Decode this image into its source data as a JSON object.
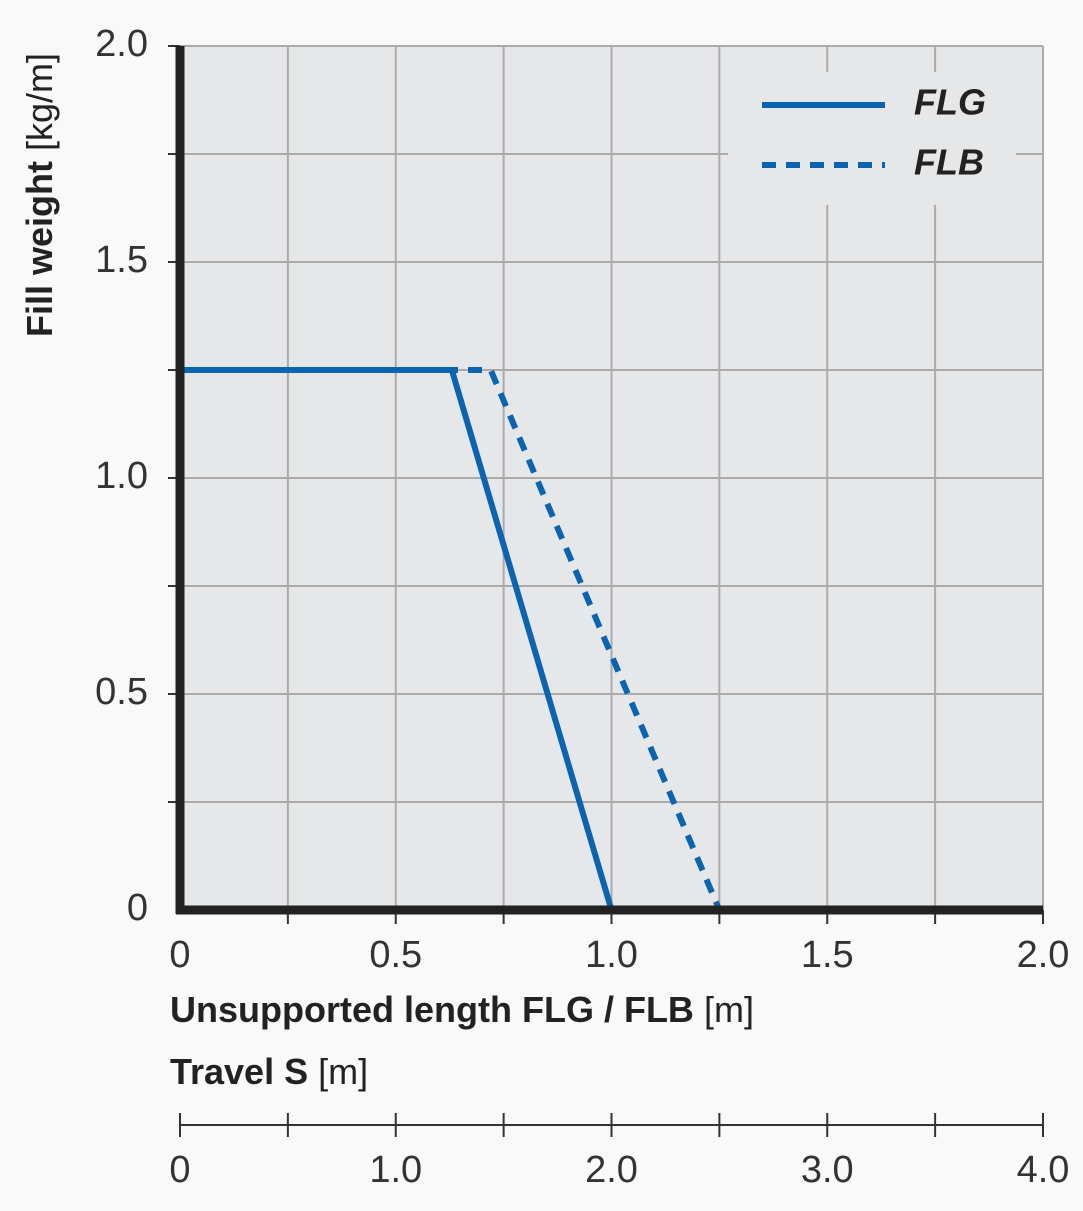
{
  "chart_data": {
    "type": "line",
    "ylabel": "Fill weight",
    "ylabel_unit": "[kg/m]",
    "xlabel": "Unsupported length FLG / FLB",
    "xlabel_unit": "[m]",
    "x2label": "Travel S",
    "x2label_unit": "[m]",
    "xlim": [
      0,
      2
    ],
    "xticks": [
      0,
      0.5,
      {
        "value": 1,
        "label": "1.0"
      },
      1.5,
      {
        "value": 2,
        "label": "2.0"
      }
    ],
    "ylim": [
      0,
      2
    ],
    "yticks": [
      0,
      0.5,
      {
        "value": 1,
        "label": "1.0"
      },
      1.5,
      {
        "value": 2,
        "label": "2.0"
      }
    ],
    "xgrid": [
      0.25,
      0.5,
      0.75,
      1,
      1.25,
      1.5,
      1.75,
      2
    ],
    "ygrid": [
      0.25,
      0.5,
      0.75,
      1,
      1.25,
      1.5,
      1.75,
      2
    ],
    "x2lim": [
      0,
      4
    ],
    "x2ticks": [
      0,
      {
        "value": 1,
        "label": "1.0"
      },
      {
        "value": 2,
        "label": "2.0"
      },
      {
        "value": 3,
        "label": "3.0"
      },
      {
        "value": 4,
        "label": "4.0"
      }
    ],
    "x2minor": [
      0,
      0.5,
      1,
      1.5,
      2,
      2.5,
      3,
      3.5,
      4
    ],
    "legend": "upper right",
    "grid": true,
    "series": [
      {
        "name": "FLG",
        "color": "#0a64b0",
        "dash": false,
        "x": [
          0,
          0.63,
          1.0
        ],
        "values": [
          1.25,
          1.25,
          0
        ]
      },
      {
        "name": "FLB",
        "color": "#0a64b0",
        "dash": true,
        "x": [
          0,
          0.72,
          1.25
        ],
        "values": [
          1.25,
          1.25,
          0
        ]
      }
    ]
  }
}
